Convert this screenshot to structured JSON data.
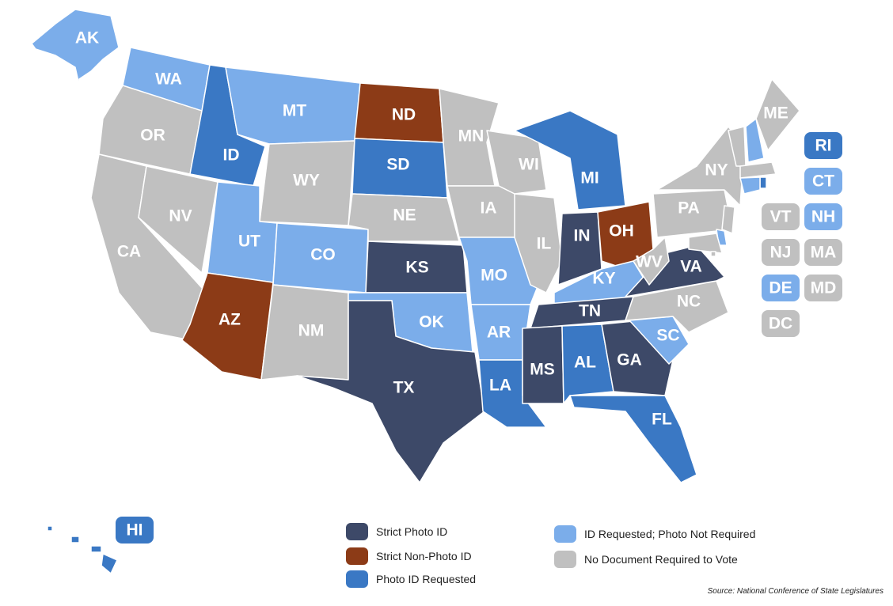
{
  "legend": [
    {
      "label": "Strict Photo ID",
      "color": "#3d4968"
    },
    {
      "label": "Strict Non-Photo ID",
      "color": "#8c3b17"
    },
    {
      "label": "Photo ID Requested",
      "color": "#3a78c4"
    },
    {
      "label": "ID Requested; Photo Not Required",
      "color": "#7badea"
    },
    {
      "label": "No Document Required to Vote",
      "color": "#c0c0c0"
    }
  ],
  "states": [
    {
      "label": "AK",
      "category": 3
    },
    {
      "label": "WA",
      "category": 3
    },
    {
      "label": "OR",
      "category": 4
    },
    {
      "label": "CA",
      "category": 4
    },
    {
      "label": "NV",
      "category": 4
    },
    {
      "label": "ID",
      "category": 2
    },
    {
      "label": "MT",
      "category": 3
    },
    {
      "label": "WY",
      "category": 4
    },
    {
      "label": "UT",
      "category": 3
    },
    {
      "label": "CO",
      "category": 3
    },
    {
      "label": "AZ",
      "category": 1
    },
    {
      "label": "NM",
      "category": 4
    },
    {
      "label": "ND",
      "category": 1
    },
    {
      "label": "SD",
      "category": 2
    },
    {
      "label": "NE",
      "category": 4
    },
    {
      "label": "KS",
      "category": 0
    },
    {
      "label": "OK",
      "category": 3
    },
    {
      "label": "TX",
      "category": 0
    },
    {
      "label": "MN",
      "category": 4
    },
    {
      "label": "IA",
      "category": 4
    },
    {
      "label": "MO",
      "category": 3
    },
    {
      "label": "AR",
      "category": 3
    },
    {
      "label": "LA",
      "category": 2
    },
    {
      "label": "WI",
      "category": 4
    },
    {
      "label": "IL",
      "category": 4
    },
    {
      "label": "MI",
      "category": 2
    },
    {
      "label": "IN",
      "category": 0
    },
    {
      "label": "OH",
      "category": 1
    },
    {
      "label": "KY",
      "category": 3
    },
    {
      "label": "TN",
      "category": 0
    },
    {
      "label": "MS",
      "category": 0
    },
    {
      "label": "AL",
      "category": 2
    },
    {
      "label": "GA",
      "category": 0
    },
    {
      "label": "FL",
      "category": 2
    },
    {
      "label": "SC",
      "category": 3
    },
    {
      "label": "NC",
      "category": 4
    },
    {
      "label": "VA",
      "category": 0
    },
    {
      "label": "WV",
      "category": 4
    },
    {
      "label": "PA",
      "category": 4
    },
    {
      "label": "NY",
      "category": 4
    },
    {
      "label": "ME",
      "category": 4
    },
    {
      "label": "HI",
      "category": 2
    },
    {
      "label": "RI",
      "category": 2
    },
    {
      "label": "CT",
      "category": 3
    },
    {
      "label": "VT",
      "category": 4
    },
    {
      "label": "NH",
      "category": 3
    },
    {
      "label": "NJ",
      "category": 4
    },
    {
      "label": "MA",
      "category": 4
    },
    {
      "label": "DE",
      "category": 3
    },
    {
      "label": "MD",
      "category": 4
    },
    {
      "label": "DC",
      "category": 4
    }
  ],
  "source": "Source: National Conference of State Legislatures"
}
